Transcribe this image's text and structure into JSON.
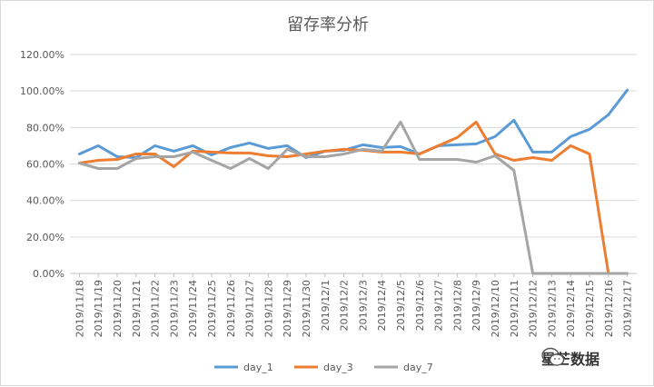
{
  "chart_data": {
    "type": "line",
    "title": "留存率分析",
    "xlabel": "",
    "ylabel": "",
    "ylim": [
      0,
      120
    ],
    "yticks": [
      "0.00%",
      "20.00%",
      "40.00%",
      "60.00%",
      "80.00%",
      "100.00%",
      "120.00%"
    ],
    "grid": true,
    "legend": "bottom",
    "x": [
      "2019/11/18",
      "2019/11/19",
      "2019/11/20",
      "2019/11/21",
      "2019/11/22",
      "2019/11/23",
      "2019/11/24",
      "2019/11/25",
      "2019/11/26",
      "2019/11/27",
      "2019/11/28",
      "2019/11/29",
      "2019/11/30",
      "2019/12/1",
      "2019/12/2",
      "2019/12/3",
      "2019/12/4",
      "2019/12/5",
      "2019/12/6",
      "2019/12/7",
      "2019/12/8",
      "2019/12/9",
      "2019/12/10",
      "2019/12/11",
      "2019/12/12",
      "2019/12/13",
      "2019/12/14",
      "2019/12/15",
      "2019/12/16",
      "2019/12/17"
    ],
    "series": [
      {
        "name": "day_1",
        "color": "#5b9bd5",
        "values": [
          65.5,
          70,
          64,
          63.5,
          70,
          67,
          70,
          65,
          69,
          71.5,
          68.5,
          70,
          63.5,
          67,
          67.5,
          70.5,
          69,
          69.5,
          65.5,
          70,
          70.5,
          71,
          75,
          84,
          66.5,
          66.5,
          75,
          79,
          87,
          100.5
        ]
      },
      {
        "name": "day_3",
        "color": "#ed7d31",
        "values": [
          60.5,
          62,
          62.5,
          65.5,
          65.5,
          58.5,
          67,
          66.5,
          66,
          66,
          64.5,
          64,
          65.5,
          67,
          68,
          67.5,
          66.5,
          66.5,
          65.5,
          70,
          74.5,
          83,
          65.5,
          62,
          63.5,
          62,
          70,
          65.5,
          0,
          null
        ]
      },
      {
        "name": "day_7",
        "color": "#a5a5a5",
        "values": [
          60.5,
          57.5,
          57.5,
          63,
          64,
          64,
          66.5,
          62,
          57.5,
          63,
          57.5,
          68,
          64,
          64,
          65.5,
          68,
          67,
          83,
          62.5,
          62.5,
          62.5,
          61,
          64.5,
          56.5,
          0,
          0,
          0,
          0,
          0,
          0
        ]
      }
    ]
  },
  "watermark": {
    "text": "星芒数据",
    "icon": "wechat-logo-icon"
  }
}
